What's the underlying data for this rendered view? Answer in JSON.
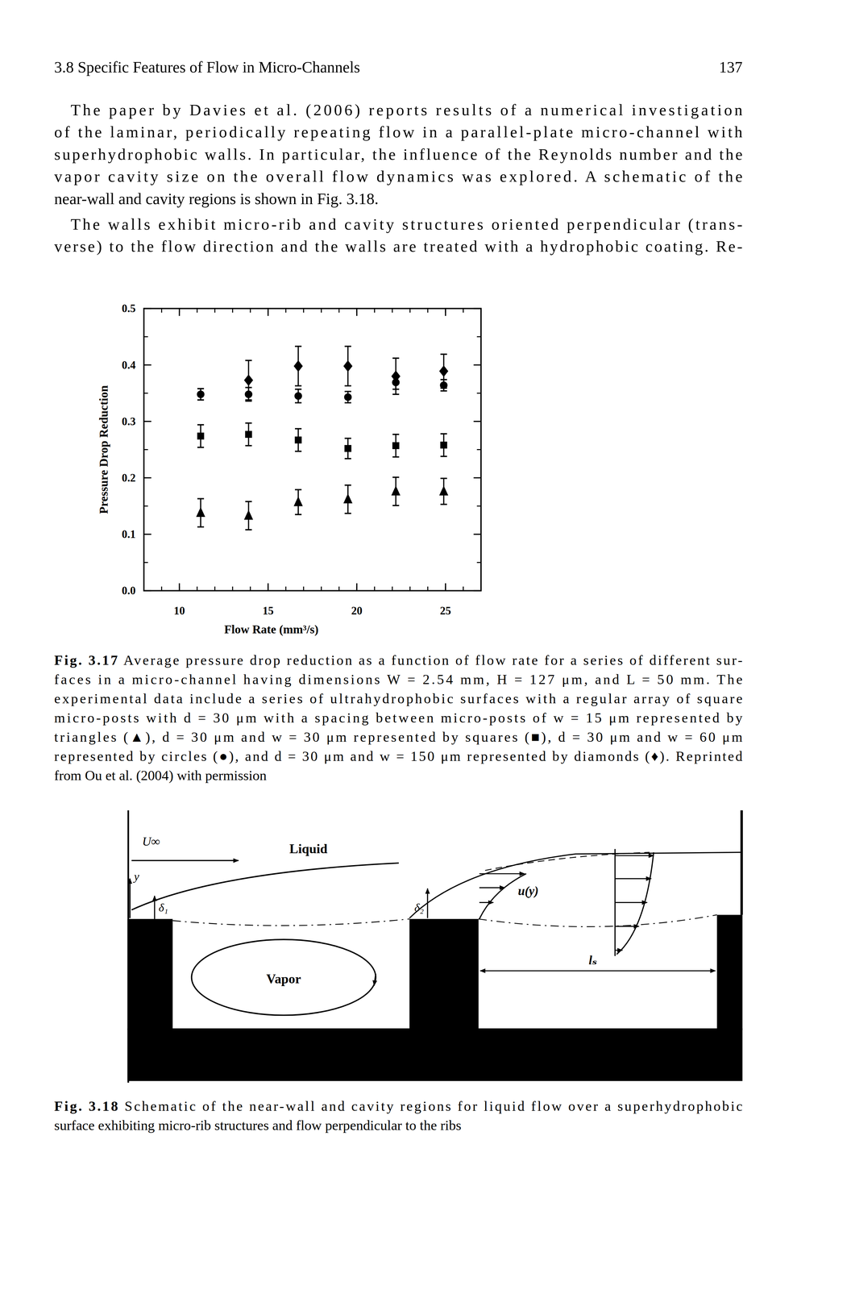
{
  "header": {
    "section": "3.8 Specific Features of Flow in Micro-Channels",
    "page": "137"
  },
  "paragraphs": [
    [
      "The paper by Davies et al. (2006) reports results of a numerical investigation",
      "of the laminar, periodically repeating flow in a parallel-plate micro-channel with",
      "superhydrophobic walls. In particular, the influence of the Reynolds number and the",
      "vapor cavity size on the overall flow dynamics was explored. A schematic of the",
      "near-wall and cavity regions is shown in Fig. 3.18."
    ],
    [
      "The walls exhibit micro-rib and cavity structures oriented perpendicular (trans-",
      "verse) to the flow direction and the walls are treated with a hydrophobic coating. Re-"
    ]
  ],
  "chart_data": {
    "type": "scatter",
    "x_label": "Flow Rate (mm³/s)",
    "y_label": "Pressure Drop Reduction",
    "xlim": [
      8,
      27
    ],
    "xticks": [
      10,
      15,
      20,
      25
    ],
    "ylim": [
      0,
      0.5
    ],
    "yticks": [
      {
        "value": 0,
        "label": "0.0"
      },
      0.1,
      0.2,
      0.3,
      0.4,
      0.5
    ],
    "grid": false,
    "x": [
      11.2,
      13.9,
      16.7,
      19.5,
      22.2,
      24.9
    ],
    "series": [
      {
        "marker": "triangle",
        "color": "#000000",
        "values": [
          0.138,
          0.133,
          0.157,
          0.162,
          0.176,
          0.176
        ],
        "errors": [
          0.025,
          0.025,
          0.022,
          0.025,
          0.025,
          0.023
        ]
      },
      {
        "marker": "square",
        "color": "#000000",
        "values": [
          0.274,
          0.277,
          0.267,
          0.252,
          0.257,
          0.258
        ],
        "errors": [
          0.02,
          0.02,
          0.02,
          0.018,
          0.02,
          0.02
        ]
      },
      {
        "marker": "circle",
        "color": "#000000",
        "values": [
          0.348,
          0.348,
          0.345,
          0.343,
          0.369,
          0.364
        ],
        "errors": [
          0.01,
          0.012,
          0.012,
          0.01,
          0.012,
          0.01
        ]
      },
      {
        "marker": "diamond",
        "color": "#000000",
        "values": [
          null,
          0.373,
          0.398,
          0.398,
          0.38,
          0.389
        ],
        "errors": [
          null,
          0.035,
          0.035,
          0.035,
          0.032,
          0.03
        ]
      }
    ]
  },
  "figures": [
    {
      "label": "Fig. 3.17",
      "lines": [
        "Average pressure drop reduction as a function of flow rate for a series of different sur-",
        "faces in a micro-channel having dimensions W = 2.54 mm, H = 127 μm, and L = 50 mm. The",
        "experimental data include a series of ultrahydrophobic surfaces with a regular array of square",
        "micro-posts with d = 30 μm with a spacing between micro-posts of w = 15 μm represented by",
        "triangles (▲), d = 30 μm and w = 30 μm represented by squares (■), d = 30 μm and w = 60 μm",
        "represented by circles (●), and d = 30 μm and w = 150 μm represented by diamonds (♦). Reprinted",
        "from Ou et al. (2004) with permission"
      ]
    },
    {
      "label": "Fig. 3.18",
      "lines": [
        "Schematic of the near-wall and cavity regions for liquid flow over a superhydrophobic",
        "surface exhibiting micro-rib structures and flow perpendicular to the ribs"
      ]
    }
  ],
  "diagram": {
    "labels": {
      "free_stream": "U∞",
      "liquid": "Liquid",
      "y_axis": "y",
      "delta_1": "δ₁",
      "delta_2": "δ₂",
      "profile": "u(y)",
      "vapor": "Vapor",
      "rib_spacing": "lₛ"
    }
  }
}
